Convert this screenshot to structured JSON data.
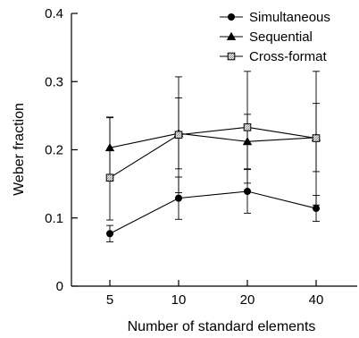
{
  "chart_data": {
    "type": "line",
    "title": "",
    "xlabel": "Number of standard elements",
    "ylabel": "Weber fraction",
    "categories": [
      "5",
      "10",
      "20",
      "40"
    ],
    "ylim": [
      0,
      0.4
    ],
    "yticks": [
      "0",
      "0.1",
      "0.2",
      "0.3",
      "0.4"
    ],
    "grid": false,
    "legend_position": "top-right",
    "series": [
      {
        "name": "Simultaneous",
        "marker": "circle-filled",
        "color": "#000000",
        "values": [
          0.077,
          0.129,
          0.139,
          0.114
        ],
        "err_low": [
          0.012,
          0.031,
          0.032,
          0.019
        ],
        "err_high": [
          0.012,
          0.031,
          0.032,
          0.019
        ]
      },
      {
        "name": "Sequential",
        "marker": "triangle-filled",
        "color": "#000000",
        "values": [
          0.203,
          0.224,
          0.212,
          0.218
        ],
        "err_low": [
          0.045,
          0.052,
          0.04,
          0.05
        ],
        "err_high": [
          0.045,
          0.052,
          0.04,
          0.05
        ]
      },
      {
        "name": "Cross-format",
        "marker": "square-hatched",
        "color": "#000000",
        "values": [
          0.159,
          0.222,
          0.233,
          0.217
        ],
        "err_low": [
          0.062,
          0.085,
          0.082,
          0.098
        ],
        "err_high": [
          0.088,
          0.085,
          0.082,
          0.098
        ]
      }
    ]
  }
}
